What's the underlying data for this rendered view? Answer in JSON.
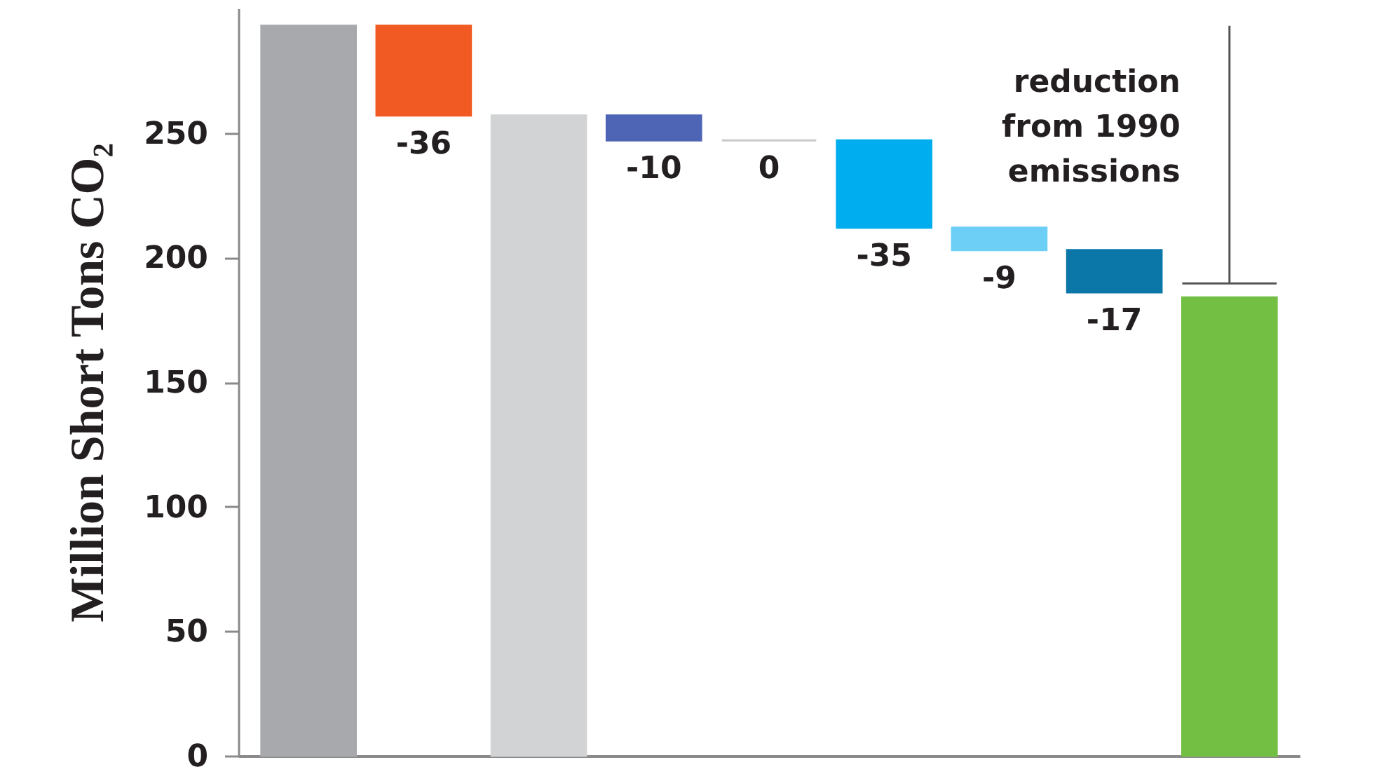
{
  "chart_data": {
    "type": "bar",
    "ylabel": "Million Short Tons CO₂",
    "categories": [
      null,
      null,
      null,
      null,
      null,
      null,
      null,
      null,
      null
    ],
    "values": [
      293,
      -36,
      257,
      -10,
      0,
      -35,
      -9,
      -17,
      184
    ],
    "base": [
      0,
      293,
      0,
      257,
      247,
      247,
      212,
      203,
      0
    ],
    "colors": [
      "#a7a9ac",
      "#f15a22",
      "#d1d3d4",
      "#4e64b4",
      "#c8c9cb",
      "#00aeef",
      "#6dcff6",
      "#0a77a8",
      "#72bf44"
    ],
    "value_labels": [
      null,
      "-36",
      null,
      "-10",
      "0",
      "-35",
      "-9",
      "-17",
      null
    ],
    "ylim": [
      0,
      300
    ],
    "yticks": [
      0,
      50,
      100,
      150,
      200,
      250
    ],
    "tick_labels": "y",
    "annotations": [
      "reduction\nfrom 1990\nemissions"
    ]
  }
}
